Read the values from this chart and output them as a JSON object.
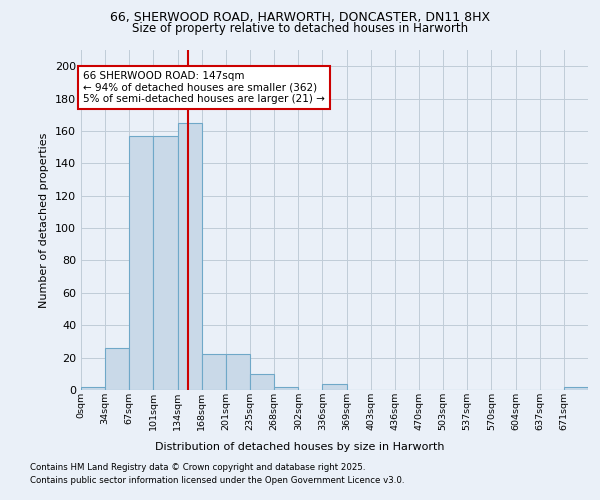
{
  "title1": "66, SHERWOOD ROAD, HARWORTH, DONCASTER, DN11 8HX",
  "title2": "Size of property relative to detached houses in Harworth",
  "xlabel": "Distribution of detached houses by size in Harworth",
  "ylabel": "Number of detached properties",
  "bin_labels": [
    "0sqm",
    "34sqm",
    "67sqm",
    "101sqm",
    "134sqm",
    "168sqm",
    "201sqm",
    "235sqm",
    "268sqm",
    "302sqm",
    "336sqm",
    "369sqm",
    "403sqm",
    "436sqm",
    "470sqm",
    "503sqm",
    "537sqm",
    "570sqm",
    "604sqm",
    "637sqm",
    "671sqm"
  ],
  "bar_heights": [
    2,
    26,
    157,
    157,
    165,
    22,
    22,
    10,
    2,
    0,
    4,
    0,
    0,
    0,
    0,
    0,
    0,
    0,
    0,
    0,
    2
  ],
  "bar_color": "#c9d9e8",
  "bar_edge_color": "#6fa8c8",
  "vline_x": 4.42,
  "vline_color": "#cc0000",
  "annotation_text": "66 SHERWOOD ROAD: 147sqm\n← 94% of detached houses are smaller (362)\n5% of semi-detached houses are larger (21) →",
  "annotation_box_color": "#ffffff",
  "annotation_box_edge": "#cc0000",
  "ylim": [
    0,
    210
  ],
  "yticks": [
    0,
    20,
    40,
    60,
    80,
    100,
    120,
    140,
    160,
    180,
    200
  ],
  "footer1": "Contains HM Land Registry data © Crown copyright and database right 2025.",
  "footer2": "Contains public sector information licensed under the Open Government Licence v3.0.",
  "bg_color": "#eaf0f8",
  "plot_bg_color": "#eaf0f8",
  "grid_color": "#c0ccd8"
}
